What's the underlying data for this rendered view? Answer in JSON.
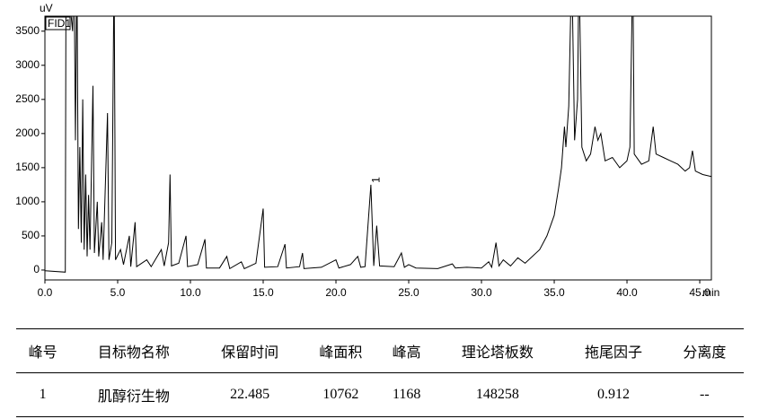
{
  "chart_data": {
    "type": "line",
    "y_label": "uV",
    "x_label": "min",
    "detector_label": "FID1",
    "xlim": [
      0,
      45.8
    ],
    "ylim": [
      -145,
      3720
    ],
    "xticks": [
      {
        "value": 0,
        "label": "0.0"
      },
      {
        "value": 5,
        "label": "5.0"
      },
      {
        "value": 10,
        "label": "10.0"
      },
      {
        "value": 15,
        "label": "15.0"
      },
      {
        "value": 20,
        "label": "20.0"
      },
      {
        "value": 25,
        "label": "25.0"
      },
      {
        "value": 30,
        "label": "30.0"
      },
      {
        "value": 35,
        "label": "35.0"
      },
      {
        "value": 40,
        "label": "40.0"
      },
      {
        "value": 45,
        "label": "45.0"
      }
    ],
    "yticks": [
      0,
      500,
      1000,
      1500,
      2000,
      2500,
      3000,
      3500
    ],
    "grid": false,
    "annotations": [
      {
        "text": "1",
        "x": 22.485
      }
    ],
    "series": [
      {
        "color": "#000000",
        "x": [
          0,
          1.4,
          1.45,
          1.9,
          2.0,
          2.1,
          2.2,
          2.3,
          2.4,
          2.5,
          2.6,
          2.7,
          2.8,
          2.9,
          3.0,
          3.1,
          3.3,
          3.4,
          3.6,
          3.7,
          3.9,
          4.0,
          4.3,
          4.4,
          4.6,
          4.75,
          4.85,
          5.2,
          5.4,
          5.8,
          5.9,
          6.2,
          6.3,
          7,
          7.3,
          8,
          8.2,
          8.5,
          8.6,
          8.7,
          9.2,
          9.7,
          9.8,
          10.5,
          11,
          11.1,
          12,
          12.5,
          12.7,
          13.5,
          13.7,
          14.5,
          15,
          15.1,
          16,
          16.5,
          16.6,
          17.5,
          17.7,
          17.8,
          19,
          20,
          20.2,
          21,
          21.5,
          21.7,
          22,
          22.4,
          22.6,
          22.8,
          23,
          24,
          24.5,
          24.7,
          25,
          25.5,
          27,
          28,
          28.2,
          29,
          30,
          30.5,
          30.7,
          31,
          31.2,
          31.5,
          32,
          32.5,
          33,
          34,
          34.5,
          35,
          35.3,
          35.5,
          35.7,
          35.8,
          36,
          36.2,
          36.4,
          36.6,
          36.7,
          36.9,
          37.2,
          37.5,
          37.8,
          38,
          38.2,
          38.5,
          39,
          39.5,
          40,
          40.2,
          40.4,
          40.5,
          41,
          41.5,
          41.8,
          42,
          42.5,
          43,
          43.5,
          44,
          44.3,
          44.5,
          44.7,
          45.2,
          45.8
        ],
        "values": [
          -10,
          -30,
          4500,
          3500,
          4500,
          1900,
          4500,
          600,
          1800,
          400,
          2500,
          300,
          1400,
          200,
          1100,
          300,
          2700,
          250,
          1000,
          200,
          700,
          150,
          2300,
          150,
          400,
          4500,
          150,
          300,
          80,
          500,
          50,
          700,
          50,
          150,
          50,
          300,
          60,
          400,
          1400,
          60,
          100,
          500,
          50,
          80,
          450,
          30,
          30,
          200,
          20,
          120,
          20,
          100,
          900,
          40,
          50,
          380,
          30,
          50,
          250,
          20,
          40,
          150,
          30,
          80,
          200,
          40,
          50,
          1250,
          60,
          650,
          60,
          50,
          250,
          40,
          80,
          30,
          20,
          90,
          30,
          40,
          30,
          120,
          40,
          400,
          60,
          150,
          60,
          180,
          100,
          300,
          500,
          800,
          1200,
          1500,
          2100,
          1800,
          2400,
          4500,
          1900,
          2500,
          4500,
          1800,
          1600,
          1700,
          2100,
          1900,
          2000,
          1600,
          1650,
          1500,
          1600,
          1800,
          4500,
          1700,
          1550,
          1600,
          2100,
          1700,
          1650,
          1600,
          1550,
          1450,
          1500,
          1750,
          1450,
          1400,
          1370
        ]
      }
    ]
  },
  "table": {
    "header": [
      "峰号",
      "目标物名称",
      "保留时间",
      "峰面积",
      "峰高",
      "理论塔板数",
      "拖尾因子",
      "分离度"
    ],
    "rows": [
      [
        "1",
        "肌醇衍生物",
        "22.485",
        "10762",
        "1168",
        "148258",
        "0.912",
        "--"
      ]
    ]
  }
}
